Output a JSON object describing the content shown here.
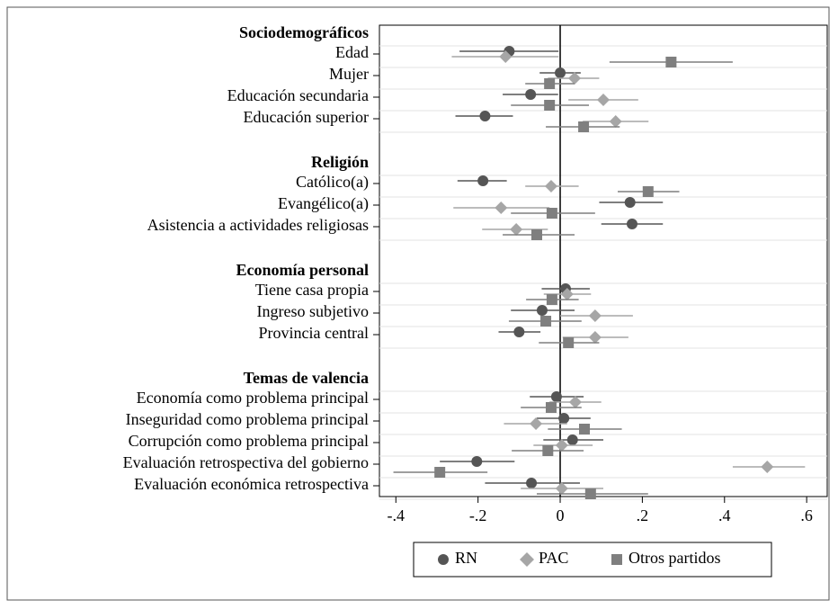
{
  "chart_data": {
    "type": "coefplot",
    "groups": [
      {
        "title": "Sociodemográficos",
        "categories": [
          "Edad",
          "Mujer",
          "Educación secundaria",
          "Educación superior"
        ]
      },
      {
        "title": "Religión",
        "categories": [
          "Católico(a)",
          "Evangélico(a)",
          "Asistencia a actividades religiosas"
        ]
      },
      {
        "title": "Economía personal",
        "categories": [
          "Tiene casa propia",
          "Ingreso subjetivo",
          "Provincia central"
        ]
      },
      {
        "title": "Temas de valencia",
        "categories": [
          "Economía como problema principal",
          "Inseguridad como problema principal",
          "Corrupción como problema principal",
          "Evaluación retrospectiva del gobierno",
          "Evaluación económica retrospectiva"
        ]
      }
    ],
    "series": [
      {
        "name": "RN",
        "color": "#555555",
        "marker": "circle",
        "values": [
          -0.124,
          0.0,
          -0.072,
          -0.183,
          -0.188,
          0.17,
          0.175,
          0.013,
          -0.044,
          -0.1,
          -0.009,
          0.009,
          0.03,
          -0.203,
          -0.07
        ],
        "ci": [
          [
            -0.245,
            -0.004
          ],
          [
            -0.05,
            0.05
          ],
          [
            -0.14,
            -0.005
          ],
          [
            -0.255,
            -0.115
          ],
          [
            -0.25,
            -0.13
          ],
          [
            0.095,
            0.25
          ],
          [
            0.1,
            0.25
          ],
          [
            -0.045,
            0.072
          ],
          [
            -0.12,
            0.035
          ],
          [
            -0.15,
            -0.048
          ],
          [
            -0.074,
            0.057
          ],
          [
            -0.057,
            0.074
          ],
          [
            -0.041,
            0.105
          ],
          [
            -0.293,
            -0.111
          ],
          [
            -0.183,
            0.048
          ]
        ]
      },
      {
        "name": "PAC",
        "color": "#a6a6a6",
        "marker": "diamond",
        "values": [
          -0.133,
          0.035,
          0.105,
          0.135,
          -0.022,
          -0.144,
          -0.107,
          0.017,
          0.085,
          0.085,
          0.037,
          -0.059,
          0.004,
          0.504,
          0.004
        ],
        "ci": [
          [
            -0.264,
            -0.004
          ],
          [
            -0.03,
            0.095
          ],
          [
            0.02,
            0.19
          ],
          [
            0.055,
            0.215
          ],
          [
            -0.085,
            0.045
          ],
          [
            -0.26,
            -0.026
          ],
          [
            -0.19,
            -0.03
          ],
          [
            -0.04,
            0.075
          ],
          [
            0.0,
            0.177
          ],
          [
            0.006,
            0.166
          ],
          [
            -0.026,
            0.1
          ],
          [
            -0.137,
            0.017
          ],
          [
            -0.065,
            0.079
          ],
          [
            0.42,
            0.596
          ],
          [
            -0.096,
            0.105
          ]
        ]
      },
      {
        "name": "Otros partidos",
        "color": "#7f7f7f",
        "marker": "square",
        "values": [
          0.27,
          -0.026,
          -0.026,
          0.057,
          0.214,
          -0.02,
          -0.057,
          -0.02,
          -0.035,
          0.02,
          -0.022,
          0.059,
          -0.03,
          -0.293,
          0.074
        ],
        "ci": [
          [
            0.12,
            0.42
          ],
          [
            -0.085,
            0.035
          ],
          [
            -0.12,
            0.07
          ],
          [
            -0.035,
            0.145
          ],
          [
            0.14,
            0.29
          ],
          [
            -0.12,
            0.085
          ],
          [
            -0.14,
            0.035
          ],
          [
            -0.083,
            0.045
          ],
          [
            -0.125,
            0.052
          ],
          [
            -0.052,
            0.095
          ],
          [
            -0.096,
            0.052
          ],
          [
            -0.03,
            0.15
          ],
          [
            -0.118,
            0.057
          ],
          [
            -0.406,
            -0.177
          ],
          [
            -0.057,
            0.214
          ]
        ]
      }
    ],
    "xlim": [
      -0.44,
      0.65
    ],
    "xticks": [
      {
        "value": -0.4,
        "label": "-.4"
      },
      {
        "value": -0.2,
        "label": "-.2"
      },
      0,
      {
        "value": 0.2,
        "label": ".2"
      },
      {
        "value": 0.4,
        "label": ".4"
      },
      {
        "value": 0.6,
        "label": ".6"
      }
    ],
    "zero_line": true
  }
}
